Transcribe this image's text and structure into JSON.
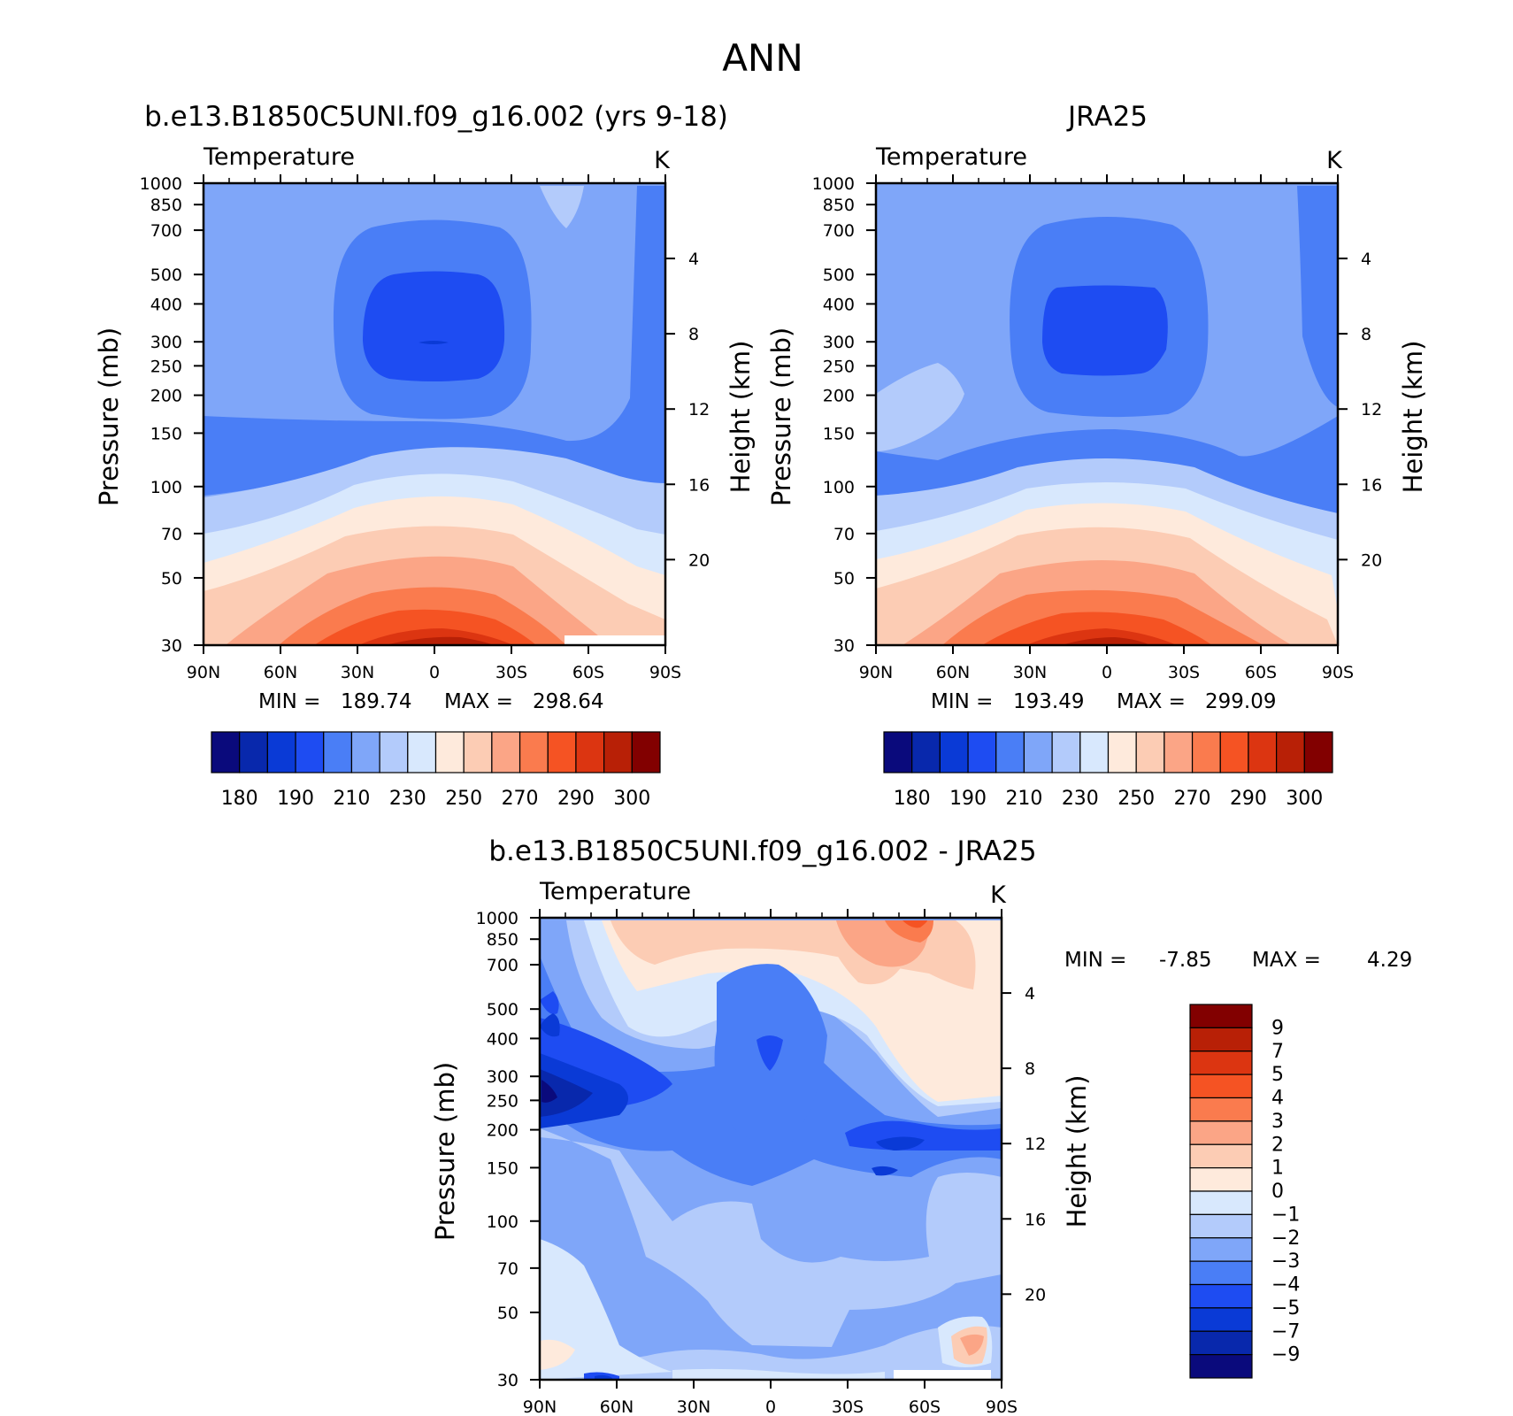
{
  "figure": {
    "title": "ANN"
  },
  "pressure_ticks": [
    "30",
    "50",
    "70",
    "100",
    "150",
    "200",
    "250",
    "300",
    "400",
    "500",
    "700",
    "850",
    "1000"
  ],
  "pressure_values": [
    30,
    50,
    70,
    100,
    150,
    200,
    250,
    300,
    400,
    500,
    700,
    850,
    1000
  ],
  "height_ticks": [
    "20",
    "16",
    "12",
    "8",
    "4"
  ],
  "height_values": [
    20,
    16,
    12,
    8,
    4
  ],
  "lat_ticks": [
    "90N",
    "60N",
    "30N",
    "0",
    "30S",
    "60S",
    "90S"
  ],
  "lat_values": [
    90,
    60,
    30,
    0,
    -30,
    -60,
    -90
  ],
  "labels": {
    "variable": "Temperature",
    "units": "K",
    "ylabel_left": "Pressure (mb)",
    "ylabel_right": "Height (km)",
    "min_label": "MIN =",
    "max_label": "MAX ="
  },
  "chart_data": [
    {
      "type": "heatmap",
      "title": "b.e13.B1850C5UNI.f09_g16.002 (yrs 9-18)",
      "variable": "Temperature",
      "units": "K",
      "min": "189.74",
      "max": "298.64",
      "x_range": [
        90,
        -90
      ],
      "y_range": [
        1000,
        30
      ],
      "y_scale": "log",
      "colorbar": {
        "orientation": "horizontal",
        "levels": [
          180,
          185,
          190,
          200,
          210,
          220,
          230,
          240,
          250,
          260,
          270,
          280,
          290,
          295,
          300
        ],
        "tick_labels": [
          "180",
          "190",
          "210",
          "230",
          "250",
          "270",
          "290",
          "300"
        ],
        "colors": [
          "#0a0a7c",
          "#0828ac",
          "#0a3ad6",
          "#1e4cf2",
          "#4a7ef6",
          "#7fa6f9",
          "#b3cbfb",
          "#d8e8fd",
          "#feeadc",
          "#fcccb4",
          "#fba586",
          "#fa7b4e",
          "#f55323",
          "#dc3511",
          "#b82006",
          "#820000"
        ]
      }
    },
    {
      "type": "heatmap",
      "title": "JRA25",
      "variable": "Temperature",
      "units": "K",
      "min": "193.49",
      "max": "299.09",
      "x_range": [
        90,
        -90
      ],
      "y_range": [
        1000,
        30
      ],
      "y_scale": "log",
      "colorbar": {
        "orientation": "horizontal",
        "levels": [
          180,
          185,
          190,
          200,
          210,
          220,
          230,
          240,
          250,
          260,
          270,
          280,
          290,
          295,
          300
        ],
        "tick_labels": [
          "180",
          "190",
          "210",
          "230",
          "250",
          "270",
          "290",
          "300"
        ],
        "colors": [
          "#0a0a7c",
          "#0828ac",
          "#0a3ad6",
          "#1e4cf2",
          "#4a7ef6",
          "#7fa6f9",
          "#b3cbfb",
          "#d8e8fd",
          "#feeadc",
          "#fcccb4",
          "#fba586",
          "#fa7b4e",
          "#f55323",
          "#dc3511",
          "#b82006",
          "#820000"
        ]
      }
    },
    {
      "type": "heatmap",
      "title": "b.e13.B1850C5UNI.f09_g16.002 - JRA25",
      "variable": "Temperature",
      "units": "K",
      "min": "-7.85",
      "max": "4.29",
      "x_range": [
        90,
        -90
      ],
      "y_range": [
        1000,
        30
      ],
      "y_scale": "log",
      "colorbar": {
        "orientation": "vertical",
        "levels": [
          9,
          7,
          5,
          4,
          3,
          2,
          1,
          0,
          -1,
          -2,
          -3,
          -4,
          -5,
          -7,
          -9
        ],
        "tick_labels": [
          "9",
          "7",
          "5",
          "4",
          "3",
          "2",
          "1",
          "0",
          "−1",
          "−2",
          "−3",
          "−4",
          "−5",
          "−7",
          "−9"
        ],
        "colors": [
          "#820000",
          "#b82006",
          "#dc3511",
          "#f55323",
          "#fa7b4e",
          "#fba586",
          "#fcccb4",
          "#feeadc",
          "#d8e8fd",
          "#b3cbfb",
          "#7fa6f9",
          "#4a7ef6",
          "#1e4cf2",
          "#0a3ad6",
          "#0828ac",
          "#0a0a7c"
        ]
      }
    }
  ]
}
